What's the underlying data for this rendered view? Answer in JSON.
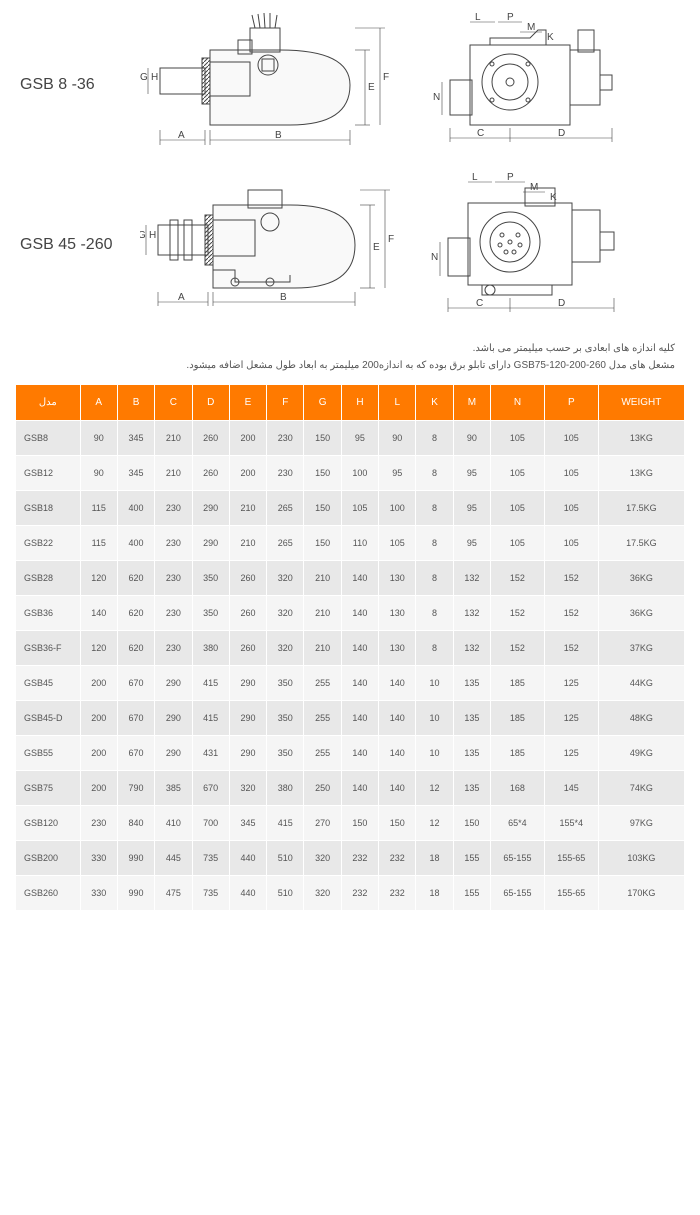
{
  "diagrams": {
    "row1_label": "GSB 8 -36",
    "row2_label": "GSB 45 -260",
    "dim_labels": {
      "A": "A",
      "B": "B",
      "C": "C",
      "D": "D",
      "E": "E",
      "F": "F",
      "G": "G",
      "H": "H",
      "L": "L",
      "K": "K",
      "M": "M",
      "N": "N",
      "P": "P"
    }
  },
  "notes": {
    "line1": "کلیه اندازه های ابعادی بر حسب میلیمتر می باشد.",
    "line2": "مشعل های مدل GSB75-120-200-260 دارای تابلو برق بوده که به اندازه200 میلیمتر به ابعاد طول مشعل اضافه میشود."
  },
  "table": {
    "headers": [
      "مدل",
      "A",
      "B",
      "C",
      "D",
      "E",
      "F",
      "G",
      "H",
      "L",
      "K",
      "M",
      "N",
      "P",
      "WEIGHT"
    ],
    "header_bg": "#ff7a00",
    "header_color": "#ffffff",
    "row_odd_bg": "#e8e8e8",
    "row_even_bg": "#f5f5f5",
    "rows": [
      [
        "GSB8",
        "90",
        "345",
        "210",
        "260",
        "200",
        "230",
        "150",
        "95",
        "90",
        "8",
        "90",
        "105",
        "105",
        "13KG"
      ],
      [
        "GSB12",
        "90",
        "345",
        "210",
        "260",
        "200",
        "230",
        "150",
        "100",
        "95",
        "8",
        "95",
        "105",
        "105",
        "13KG"
      ],
      [
        "GSB18",
        "115",
        "400",
        "230",
        "290",
        "210",
        "265",
        "150",
        "105",
        "100",
        "8",
        "95",
        "105",
        "105",
        "17.5KG"
      ],
      [
        "GSB22",
        "115",
        "400",
        "230",
        "290",
        "210",
        "265",
        "150",
        "110",
        "105",
        "8",
        "95",
        "105",
        "105",
        "17.5KG"
      ],
      [
        "GSB28",
        "120",
        "620",
        "230",
        "350",
        "260",
        "320",
        "210",
        "140",
        "130",
        "8",
        "132",
        "152",
        "152",
        "36KG"
      ],
      [
        "GSB36",
        "140",
        "620",
        "230",
        "350",
        "260",
        "320",
        "210",
        "140",
        "130",
        "8",
        "132",
        "152",
        "152",
        "36KG"
      ],
      [
        "GSB36-F",
        "120",
        "620",
        "230",
        "380",
        "260",
        "320",
        "210",
        "140",
        "130",
        "8",
        "132",
        "152",
        "152",
        "37KG"
      ],
      [
        "GSB45",
        "200",
        "670",
        "290",
        "415",
        "290",
        "350",
        "255",
        "140",
        "140",
        "10",
        "135",
        "185",
        "125",
        "44KG"
      ],
      [
        "GSB45-D",
        "200",
        "670",
        "290",
        "415",
        "290",
        "350",
        "255",
        "140",
        "140",
        "10",
        "135",
        "185",
        "125",
        "48KG"
      ],
      [
        "GSB55",
        "200",
        "670",
        "290",
        "431",
        "290",
        "350",
        "255",
        "140",
        "140",
        "10",
        "135",
        "185",
        "125",
        "49KG"
      ],
      [
        "GSB75",
        "200",
        "790",
        "385",
        "670",
        "320",
        "380",
        "250",
        "140",
        "140",
        "12",
        "135",
        "168",
        "145",
        "74KG"
      ],
      [
        "GSB120",
        "230",
        "840",
        "410",
        "700",
        "345",
        "415",
        "270",
        "150",
        "150",
        "12",
        "150",
        "65*4",
        "155*4",
        "97KG"
      ],
      [
        "GSB200",
        "330",
        "990",
        "445",
        "735",
        "440",
        "510",
        "320",
        "232",
        "232",
        "18",
        "155",
        "65-155",
        "155-65",
        "103KG"
      ],
      [
        "GSB260",
        "330",
        "990",
        "475",
        "735",
        "440",
        "510",
        "320",
        "232",
        "232",
        "18",
        "155",
        "65-155",
        "155-65",
        "170KG"
      ]
    ]
  }
}
